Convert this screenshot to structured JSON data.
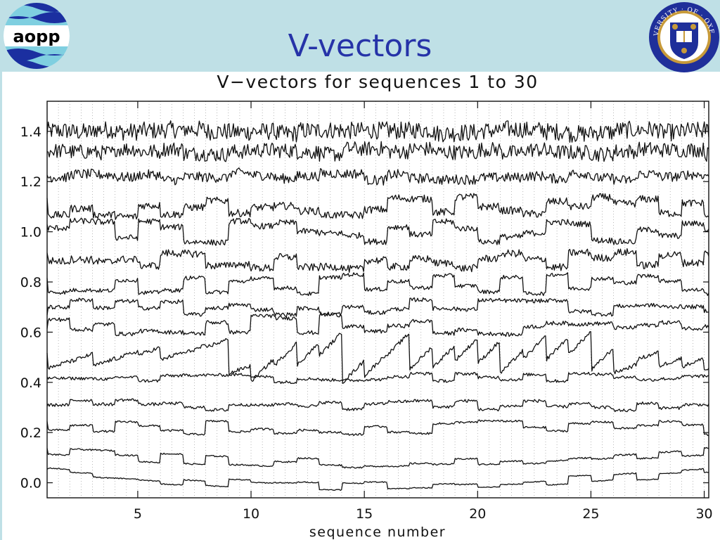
{
  "slide": {
    "title": "V-vectors",
    "logo_left_text": "aopp",
    "logo_left_icon": "aopp-wave-logo-icon",
    "logo_right_icon": "oxford-university-crest-icon",
    "logo_right_text": "UNIVERSITY · OF · OXFORD",
    "header_color": "#bfe0e6",
    "title_color": "#2633a8"
  },
  "chart_data": {
    "type": "line",
    "title": "V−vectors for sequences 1 to 30",
    "xlabel": "sequence number",
    "ylabel": "",
    "xlim": [
      1,
      30.2
    ],
    "ylim": [
      -0.06,
      1.52
    ],
    "xticks": [
      5,
      10,
      15,
      20,
      25,
      30
    ],
    "yticks": [
      0.0,
      0.2,
      0.4,
      0.6,
      0.8,
      1.0,
      1.2,
      1.4
    ],
    "ytick_labels": [
      "0.0",
      "0.2",
      "0.4",
      "0.6",
      "0.8",
      "1.0",
      "1.2",
      "1.4"
    ],
    "xtick_labels": [
      "5",
      "10",
      "15",
      "20",
      "25",
      "30"
    ],
    "vertical_dotted_grid_spacing": 0.5,
    "line_color": "#111111",
    "series": [
      {
        "offset": 1.4,
        "noise": 0.035,
        "jump": 0.01,
        "drift": 0.0
      },
      {
        "offset": 1.32,
        "noise": 0.03,
        "jump": 0.012,
        "drift": 0.0
      },
      {
        "offset": 1.22,
        "noise": 0.02,
        "jump": 0.015,
        "drift": 0.0
      },
      {
        "offset": 1.1,
        "noise": 0.015,
        "jump": 0.04,
        "drift": 0.0
      },
      {
        "offset": 1.0,
        "noise": 0.012,
        "jump": 0.045,
        "drift": 0.0
      },
      {
        "offset": 0.9,
        "noise": 0.015,
        "jump": 0.03,
        "drift": -0.02
      },
      {
        "offset": 0.79,
        "noise": 0.008,
        "jump": 0.04,
        "drift": 0.0
      },
      {
        "offset": 0.7,
        "noise": 0.008,
        "jump": 0.03,
        "drift": 0.0
      },
      {
        "offset": 0.63,
        "noise": 0.008,
        "jump": 0.04,
        "drift": 0.0
      },
      {
        "offset": 0.5,
        "noise": 0.008,
        "jump": 0.06,
        "drift": 0.0
      },
      {
        "offset": 0.42,
        "noise": 0.006,
        "jump": 0.02,
        "drift": 0.0
      },
      {
        "offset": 0.31,
        "noise": 0.006,
        "jump": 0.025,
        "drift": 0.0
      },
      {
        "offset": 0.22,
        "noise": 0.004,
        "jump": 0.03,
        "drift": 0.0
      },
      {
        "offset": 0.12,
        "noise": 0.003,
        "jump": 0.02,
        "drift": -0.04
      },
      {
        "offset": 0.04,
        "noise": 0.002,
        "jump": 0.02,
        "drift": -0.05
      }
    ]
  }
}
